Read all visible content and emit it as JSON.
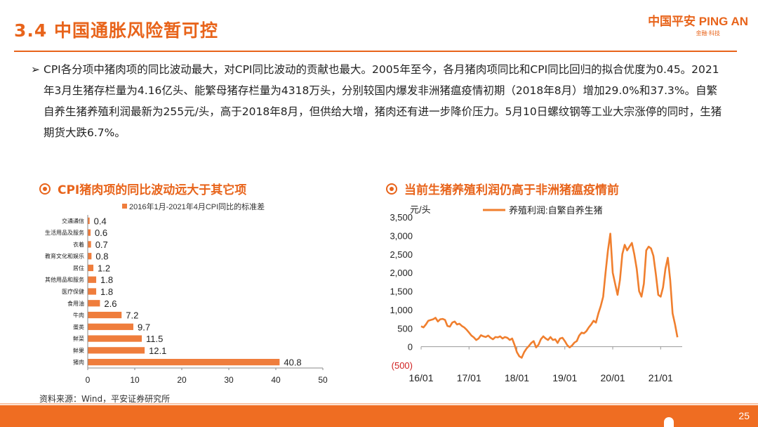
{
  "header": {
    "title": "3.4 中国通胀风险暂可控",
    "logo_main": "中国平安 PING AN",
    "logo_sub": "金融·科技"
  },
  "bullet": {
    "arrow": "➢",
    "text": "CPI各分项中猪肉项的同比波动最大，对CPI同比波动的贡献也最大。2005年至今，各月猪肉项同比和CPI同比回归的拟合优度为0.45。2021年3月生猪存栏量为4.16亿头、能繁母猪存栏量为4318万头，分别较国内爆发非洲猪瘟疫情初期（2018年8月）增加29.0%和37.3%。自繁自养生猪养殖利润最新为255元/头，高于2018年8月，但供给大增，猪肉还有进一步降价压力。5月10日螺纹钢等工业大宗涨停的同时，生猪期货大跌6.7%。"
  },
  "left_section": {
    "heading": "CPI猪肉项的同比波动远大于其它项"
  },
  "right_section": {
    "heading": "当前生猪养殖利润仍高于非洲猪瘟疫情前"
  },
  "source": "资料来源：Wind，平安证券研究所",
  "page_number": "25",
  "colors": {
    "accent": "#e8641b",
    "bar": "#ef7d3c",
    "line": "#f07f2e"
  },
  "chart_data": [
    {
      "type": "bar",
      "orientation": "horizontal",
      "legend": "2016年1月-2021年4月CPI同比的标准差",
      "categories": [
        "交通通信",
        "生活用品及服务",
        "衣着",
        "教育文化和娱乐",
        "居住",
        "其他用品和服务",
        "医疗保健",
        "食用油",
        "牛肉",
        "蛋类",
        "鲜菜",
        "鲜果",
        "猪肉"
      ],
      "values": [
        0.4,
        0.6,
        0.7,
        0.8,
        1.2,
        1.8,
        1.8,
        2.6,
        7.2,
        9.7,
        11.5,
        12.1,
        40.8
      ],
      "xlim": [
        0,
        50
      ],
      "xticks": [
        0,
        10,
        20,
        30,
        40,
        50
      ]
    },
    {
      "type": "line",
      "series_name": "养殖利润:自繁自养生猪",
      "ylabel": "元/头",
      "ylim": [
        -500,
        3500
      ],
      "yticks": [
        -500,
        0,
        500,
        1000,
        1500,
        2000,
        2500,
        3000,
        3500
      ],
      "ytick_labels": [
        "(500)",
        "0",
        "500",
        "1,000",
        "1,500",
        "2,000",
        "2,500",
        "3,000",
        "3,500"
      ],
      "xlim": [
        2016.0,
        2021.45
      ],
      "xticks": [
        2016,
        2017,
        2018,
        2019,
        2020,
        2021
      ],
      "xtick_labels": [
        "16/01",
        "17/01",
        "18/01",
        "19/01",
        "20/01",
        "21/01"
      ],
      "x": [
        2016.0,
        2016.05,
        2016.1,
        2016.15,
        2016.2,
        2016.25,
        2016.3,
        2016.35,
        2016.4,
        2016.45,
        2016.5,
        2016.55,
        2016.6,
        2016.65,
        2016.7,
        2016.75,
        2016.8,
        2016.85,
        2016.9,
        2016.95,
        2017.0,
        2017.05,
        2017.1,
        2017.15,
        2017.2,
        2017.25,
        2017.3,
        2017.35,
        2017.4,
        2017.45,
        2017.5,
        2017.55,
        2017.6,
        2017.65,
        2017.7,
        2017.75,
        2017.8,
        2017.85,
        2017.9,
        2017.95,
        2018.0,
        2018.05,
        2018.1,
        2018.15,
        2018.2,
        2018.25,
        2018.3,
        2018.35,
        2018.4,
        2018.45,
        2018.5,
        2018.55,
        2018.6,
        2018.65,
        2018.7,
        2018.75,
        2018.8,
        2018.85,
        2018.9,
        2018.95,
        2019.0,
        2019.05,
        2019.1,
        2019.15,
        2019.2,
        2019.25,
        2019.3,
        2019.35,
        2019.4,
        2019.45,
        2019.5,
        2019.55,
        2019.6,
        2019.65,
        2019.7,
        2019.75,
        2019.8,
        2019.85,
        2019.9,
        2019.95,
        2020.0,
        2020.05,
        2020.1,
        2020.15,
        2020.2,
        2020.25,
        2020.3,
        2020.35,
        2020.4,
        2020.45,
        2020.5,
        2020.55,
        2020.6,
        2020.65,
        2020.7,
        2020.75,
        2020.8,
        2020.85,
        2020.9,
        2020.95,
        2021.0,
        2021.05,
        2021.1,
        2021.15,
        2021.2,
        2021.25,
        2021.3,
        2021.35
      ],
      "y": [
        550,
        520,
        600,
        700,
        720,
        740,
        780,
        680,
        740,
        750,
        720,
        560,
        540,
        650,
        680,
        600,
        620,
        560,
        520,
        460,
        380,
        300,
        250,
        180,
        220,
        310,
        280,
        260,
        300,
        240,
        200,
        260,
        250,
        280,
        220,
        260,
        240,
        180,
        220,
        50,
        -150,
        -260,
        -300,
        -150,
        -50,
        20,
        100,
        150,
        -20,
        50,
        200,
        280,
        220,
        180,
        260,
        180,
        200,
        100,
        220,
        240,
        150,
        40,
        -20,
        30,
        110,
        150,
        300,
        380,
        360,
        420,
        520,
        600,
        700,
        650,
        900,
        1100,
        1350,
        2000,
        2600,
        3050,
        2000,
        1700,
        1400,
        1800,
        2500,
        2750,
        2600,
        2700,
        2800,
        2500,
        2100,
        1500,
        1350,
        1700,
        2600,
        2700,
        2650,
        2450,
        1950,
        1400,
        1350,
        1600,
        2100,
        2400,
        1800,
        900,
        600,
        255
      ]
    }
  ]
}
